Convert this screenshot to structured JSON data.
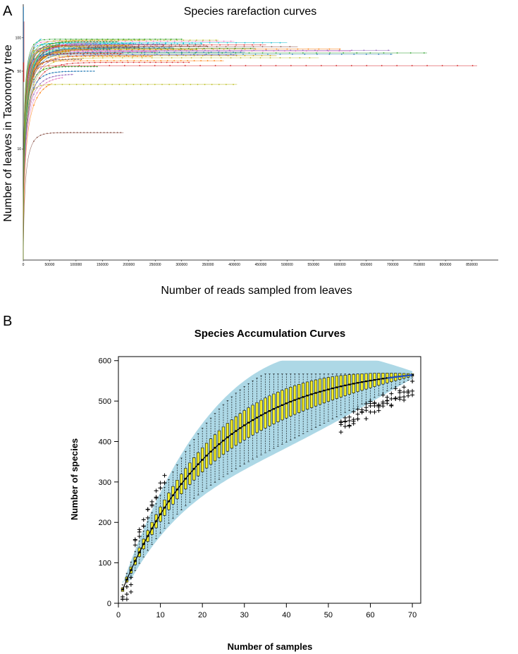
{
  "panel_a_letter": "A",
  "panel_b_letter": "B",
  "chart_data": [
    {
      "type": "line",
      "title": "Species rarefaction curves",
      "xlabel": "Number of reads sampled from leaves",
      "ylabel": "Number of leaves in Taxonomy tree",
      "xlim": [
        0,
        900000
      ],
      "ylim": [
        1,
        200
      ],
      "yscale": "log",
      "x_ticks": [
        0,
        50000,
        100000,
        150000,
        200000,
        250000,
        300000,
        350000,
        400000,
        450000,
        500000,
        550000,
        600000,
        650000,
        700000,
        750000,
        800000,
        850000
      ],
      "y_ticks": [
        10,
        50,
        100
      ],
      "curve_color_cycle": [
        "#d62728",
        "#2ca02c",
        "#1f77b4",
        "#9467bd",
        "#e377c2",
        "#ff7f0e",
        "#bcbd22",
        "#8c564b",
        "#17becf",
        "#c49c00"
      ],
      "series": [
        {
          "max_reads": 860000,
          "plateau": 56
        },
        {
          "max_reads": 765000,
          "plateau": 73
        },
        {
          "max_reads": 700000,
          "plateau": 71
        },
        {
          "max_reads": 695000,
          "plateau": 77
        },
        {
          "max_reads": 620000,
          "plateau": 76
        },
        {
          "max_reads": 600000,
          "plateau": 79
        },
        {
          "max_reads": 560000,
          "plateau": 66
        },
        {
          "max_reads": 520000,
          "plateau": 83
        },
        {
          "max_reads": 500000,
          "plateau": 90
        },
        {
          "max_reads": 480000,
          "plateau": 69
        },
        {
          "max_reads": 460000,
          "plateau": 86
        },
        {
          "max_reads": 440000,
          "plateau": 80
        },
        {
          "max_reads": 420000,
          "plateau": 74
        },
        {
          "max_reads": 405000,
          "plateau": 70
        },
        {
          "max_reads": 400000,
          "plateau": 93
        },
        {
          "max_reads": 380000,
          "plateau": 62
        },
        {
          "max_reads": 370000,
          "plateau": 95
        },
        {
          "max_reads": 350000,
          "plateau": 84
        },
        {
          "max_reads": 340000,
          "plateau": 88
        },
        {
          "max_reads": 330000,
          "plateau": 78
        },
        {
          "max_reads": 315000,
          "plateau": 60
        },
        {
          "max_reads": 300000,
          "plateau": 97
        },
        {
          "max_reads": 285000,
          "plateau": 81
        },
        {
          "max_reads": 270000,
          "plateau": 87
        },
        {
          "max_reads": 255000,
          "plateau": 75
        },
        {
          "max_reads": 245000,
          "plateau": 68
        },
        {
          "max_reads": 230000,
          "plateau": 95
        },
        {
          "max_reads": 220000,
          "plateau": 82
        },
        {
          "max_reads": 210000,
          "plateau": 89
        },
        {
          "max_reads": 200000,
          "plateau": 85
        },
        {
          "max_reads": 190000,
          "plateau": 72
        },
        {
          "max_reads": 180000,
          "plateau": 92
        },
        {
          "max_reads": 165000,
          "plateau": 79
        },
        {
          "max_reads": 150000,
          "plateau": 86
        },
        {
          "max_reads": 140000,
          "plateau": 90
        },
        {
          "max_reads": 130000,
          "plateau": 78
        },
        {
          "max_reads": 120000,
          "plateau": 83
        },
        {
          "max_reads": 110000,
          "plateau": 64
        },
        {
          "max_reads": 100000,
          "plateau": 80
        },
        {
          "max_reads": 90000,
          "plateau": 76
        },
        {
          "max_reads": 80000,
          "plateau": 88
        },
        {
          "max_reads": 70000,
          "plateau": 93
        },
        {
          "max_reads": 60000,
          "plateau": 71
        },
        {
          "max_reads": 50000,
          "plateau": 85
        },
        {
          "max_reads": 45000,
          "plateau": 81
        },
        {
          "max_reads": 40000,
          "plateau": 74
        },
        {
          "max_reads": 35000,
          "plateau": 90
        },
        {
          "max_reads": 30000,
          "plateau": 78
        },
        {
          "max_reads": 25000,
          "plateau": 96
        },
        {
          "max_reads": 20000,
          "plateau": 86
        },
        {
          "max_reads": 15000,
          "plateau": 82
        },
        {
          "max_reads": 140000,
          "plateau": 55
        },
        {
          "max_reads": 135000,
          "plateau": 50
        },
        {
          "max_reads": 95000,
          "plateau": 47
        },
        {
          "max_reads": 75000,
          "plateau": 45
        },
        {
          "max_reads": 55000,
          "plateau": 43
        },
        {
          "max_reads": 405000,
          "plateau": 38
        },
        {
          "max_reads": 190000,
          "plateau": 14
        },
        {
          "max_reads": 35000,
          "plateau": 107
        },
        {
          "max_reads": 20000,
          "plateau": 115
        },
        {
          "max_reads": 12000,
          "plateau": 122
        },
        {
          "max_reads": 8000,
          "plateau": 130
        }
      ]
    },
    {
      "type": "boxplot",
      "title": "Species Accumulation Curves",
      "xlabel": "Number of samples",
      "ylabel": "Number of species",
      "xlim": [
        0,
        72
      ],
      "ylim": [
        0,
        610
      ],
      "x_ticks": [
        0,
        10,
        20,
        30,
        40,
        50,
        60,
        70
      ],
      "y_ticks": [
        0,
        100,
        200,
        300,
        400,
        500,
        600
      ],
      "n_samples": 70,
      "total_species": 565,
      "ribbon_color": "#add8e6",
      "box_color": "#f4ef2a",
      "median_color": "#000000",
      "note": "Box-and-whisker per sample count 1..70 with confidence band; outliers drawn as + marks"
    }
  ]
}
